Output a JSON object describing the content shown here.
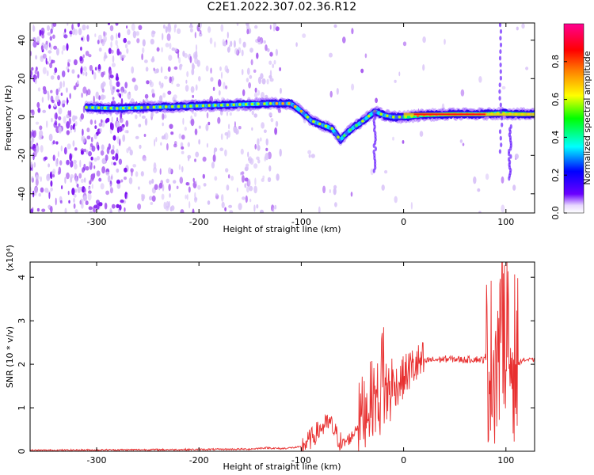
{
  "title": "C2E1.2022.307.02.36.R12",
  "chart_data": [
    {
      "type": "heatmap",
      "title": "C2E1.2022.307.02.36.R12",
      "xlabel": "Height of straight line (km)",
      "ylabel": "Frequency (Hz)",
      "xlim": [
        -365,
        128
      ],
      "ylim": [
        -50,
        49
      ],
      "xticks": [
        -300,
        -200,
        -100,
        0,
        100
      ],
      "yticks": [
        -40,
        -20,
        0,
        20,
        40
      ],
      "colorbar": {
        "label": "Normalized spectral amplitude",
        "range": [
          0,
          1
        ],
        "ticks": [
          "0.0",
          "0.2",
          "0.4",
          "0.6",
          "0.8"
        ],
        "colors": [
          "#ffffff",
          "#6a00ff",
          "#0000ff",
          "#00ffff",
          "#00ff00",
          "#ffff00",
          "#ff8000",
          "#ff0000",
          "#ff0080"
        ]
      },
      "ridge": {
        "x": [
          -310,
          -280,
          -250,
          -220,
          -190,
          -160,
          -130,
          -110,
          -100,
          -90,
          -80,
          -70,
          -62,
          -55,
          -48,
          -42,
          -35,
          -28,
          -20,
          -10,
          0,
          20,
          50,
          80,
          95,
          110,
          128
        ],
        "y": [
          5,
          4.5,
          5,
          5.5,
          6,
          6.5,
          7,
          7,
          3,
          -2,
          -4,
          -6,
          -12,
          -8,
          -5,
          -3,
          0,
          3,
          1,
          0,
          0,
          1,
          1.5,
          1.5,
          2,
          1.5,
          1.5
        ]
      }
    },
    {
      "type": "line",
      "xlabel": "Height of straight line (km)",
      "ylabel": "SNR (10 * v/v)",
      "y_multiplier": "(x10⁴)",
      "xlim": [
        -365,
        128
      ],
      "ylim": [
        0,
        4.35
      ],
      "xticks": [
        -300,
        -200,
        -100,
        0,
        100
      ],
      "yticks": [
        0,
        1,
        2,
        3,
        4
      ],
      "color": "#e83030",
      "series": [
        {
          "x": [
            -365,
            -300,
            -200,
            -150,
            -135,
            -120,
            -100,
            -90,
            -80,
            -72,
            -65,
            -60,
            -50,
            -40,
            -30,
            -22,
            -15,
            -10,
            -5,
            0,
            5,
            10,
            15,
            20,
            25,
            30,
            40,
            50,
            60,
            70,
            78,
            85,
            92,
            98,
            100,
            104,
            108,
            112,
            116,
            120,
            128
          ],
          "y": [
            0.02,
            0.03,
            0.04,
            0.05,
            0.08,
            0.06,
            0.1,
            0.3,
            0.55,
            0.65,
            0.35,
            0.15,
            0.35,
            0.9,
            1.25,
            1.2,
            1.4,
            1.5,
            1.55,
            1.7,
            1.85,
            1.95,
            2.0,
            2.05,
            2.1,
            2.1,
            2.12,
            2.12,
            2.1,
            2.12,
            2.1,
            2.1,
            2.2,
            2.4,
            2.3,
            2.1,
            2.2,
            2.0,
            2.1,
            2.1,
            2.1
          ]
        }
      ]
    }
  ]
}
